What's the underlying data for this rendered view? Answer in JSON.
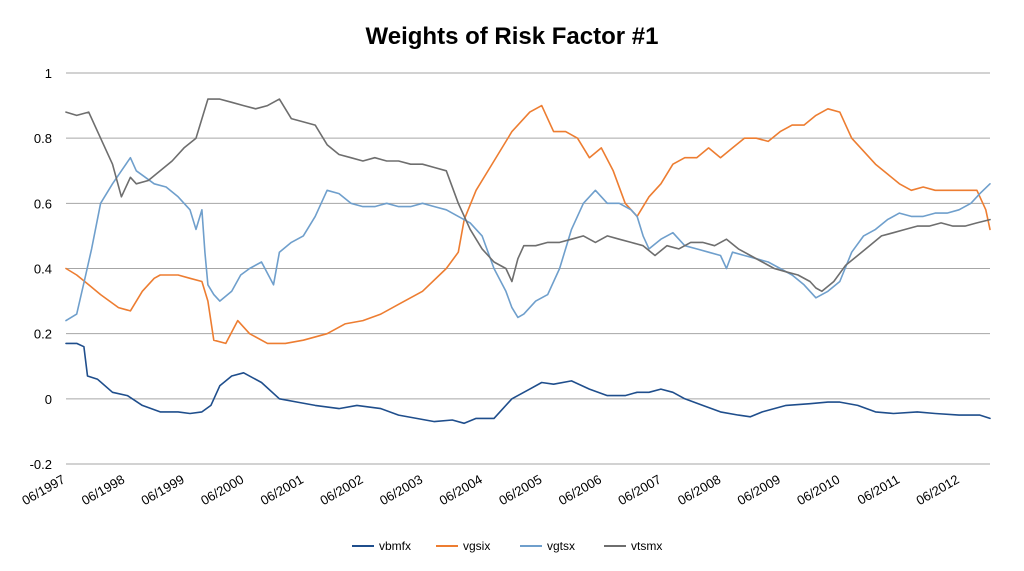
{
  "chart_data": {
    "type": "line",
    "title": "Weights of Risk Factor #1",
    "xlabel": "",
    "ylabel": "",
    "ylim": [
      -0.2,
      1
    ],
    "y_ticks": [
      "-0.2",
      "0",
      "0.2",
      "0.4",
      "0.6",
      "0.8",
      "1"
    ],
    "y_tick_values": [
      -0.2,
      0,
      0.2,
      0.4,
      0.6,
      0.8,
      1
    ],
    "xlim": [
      1997.42,
      2012.92
    ],
    "x_tick_labels": [
      "06/1997",
      "06/1998",
      "06/1999",
      "06/2000",
      "06/2001",
      "06/2002",
      "06/2003",
      "06/2004",
      "06/2005",
      "06/2006",
      "06/2007",
      "06/2008",
      "06/2009",
      "06/2010",
      "06/2011",
      "06/2012"
    ],
    "x_tick_values": [
      1997.42,
      1998.42,
      1999.42,
      2000.42,
      2001.42,
      2002.42,
      2003.42,
      2004.42,
      2005.42,
      2006.42,
      2007.42,
      2008.42,
      2009.42,
      2010.42,
      2011.42,
      2012.42
    ],
    "grid": true,
    "legend_position": "bottom",
    "series": [
      {
        "name": "vbmfx",
        "color": "#1f4e8c",
        "x": [
          1997.42,
          1997.6,
          1997.72,
          1997.78,
          1997.95,
          1998.2,
          1998.45,
          1998.7,
          1999.0,
          1999.3,
          1999.5,
          1999.7,
          1999.85,
          2000.0,
          2000.2,
          2000.4,
          2000.7,
          2001.0,
          2001.3,
          2001.6,
          2002.0,
          2002.3,
          2002.7,
          2003.0,
          2003.3,
          2003.6,
          2003.9,
          2004.1,
          2004.3,
          2004.6,
          2004.9,
          2005.2,
          2005.4,
          2005.6,
          2005.9,
          2006.2,
          2006.5,
          2006.8,
          2007.0,
          2007.2,
          2007.4,
          2007.6,
          2007.8,
          2008.1,
          2008.4,
          2008.7,
          2008.9,
          2009.1,
          2009.5,
          2009.9,
          2010.2,
          2010.4,
          2010.7,
          2011.0,
          2011.3,
          2011.7,
          2012.0,
          2012.4,
          2012.75,
          2012.92
        ],
        "values": [
          0.17,
          0.17,
          0.16,
          0.07,
          0.06,
          0.02,
          0.01,
          -0.02,
          -0.04,
          -0.04,
          -0.045,
          -0.04,
          -0.02,
          0.04,
          0.07,
          0.08,
          0.05,
          0.0,
          -0.01,
          -0.02,
          -0.03,
          -0.02,
          -0.03,
          -0.05,
          -0.06,
          -0.07,
          -0.065,
          -0.075,
          -0.06,
          -0.06,
          0.0,
          0.03,
          0.05,
          0.045,
          0.055,
          0.03,
          0.01,
          0.01,
          0.02,
          0.02,
          0.03,
          0.02,
          0.0,
          -0.02,
          -0.04,
          -0.05,
          -0.055,
          -0.04,
          -0.02,
          -0.015,
          -0.01,
          -0.01,
          -0.02,
          -0.04,
          -0.045,
          -0.04,
          -0.045,
          -0.05,
          -0.05,
          -0.06
        ]
      },
      {
        "name": "vgsix",
        "color": "#ed7d31",
        "x": [
          1997.42,
          1997.6,
          1997.8,
          1998.0,
          1998.3,
          1998.5,
          1998.7,
          1998.9,
          1999.0,
          1999.3,
          1999.5,
          1999.7,
          1999.8,
          1999.9,
          2000.1,
          2000.3,
          2000.5,
          2000.8,
          2001.1,
          2001.4,
          2001.8,
          2002.1,
          2002.4,
          2002.7,
          2003.0,
          2003.4,
          2003.8,
          2004.0,
          2004.1,
          2004.3,
          2004.6,
          2004.9,
          2005.2,
          2005.4,
          2005.6,
          2005.8,
          2006.0,
          2006.2,
          2006.4,
          2006.6,
          2006.8,
          2007.0,
          2007.2,
          2007.4,
          2007.6,
          2007.8,
          2008.0,
          2008.2,
          2008.4,
          2008.6,
          2008.8,
          2009.0,
          2009.2,
          2009.4,
          2009.6,
          2009.8,
          2010.0,
          2010.2,
          2010.4,
          2010.6,
          2010.8,
          2011.0,
          2011.2,
          2011.4,
          2011.6,
          2011.8,
          2012.0,
          2012.4,
          2012.7,
          2012.85,
          2012.92
        ],
        "values": [
          0.4,
          0.38,
          0.35,
          0.32,
          0.28,
          0.27,
          0.33,
          0.37,
          0.38,
          0.38,
          0.37,
          0.36,
          0.3,
          0.18,
          0.17,
          0.24,
          0.2,
          0.17,
          0.17,
          0.18,
          0.2,
          0.23,
          0.24,
          0.26,
          0.29,
          0.33,
          0.4,
          0.45,
          0.55,
          0.64,
          0.73,
          0.82,
          0.88,
          0.9,
          0.82,
          0.82,
          0.8,
          0.74,
          0.77,
          0.7,
          0.6,
          0.56,
          0.62,
          0.66,
          0.72,
          0.74,
          0.74,
          0.77,
          0.74,
          0.77,
          0.8,
          0.8,
          0.79,
          0.82,
          0.84,
          0.84,
          0.87,
          0.89,
          0.88,
          0.8,
          0.76,
          0.72,
          0.69,
          0.66,
          0.64,
          0.65,
          0.64,
          0.64,
          0.64,
          0.58,
          0.52
        ]
      },
      {
        "name": "vgtsx",
        "color": "#6f9fcc",
        "x": [
          1997.42,
          1997.6,
          1997.75,
          1997.85,
          1998.0,
          1998.2,
          1998.35,
          1998.5,
          1998.6,
          1998.75,
          1998.9,
          1999.1,
          1999.3,
          1999.5,
          1999.6,
          1999.7,
          1999.75,
          1999.8,
          1999.9,
          2000.0,
          2000.2,
          2000.35,
          2000.5,
          2000.7,
          2000.9,
          2001.0,
          2001.2,
          2001.4,
          2001.6,
          2001.8,
          2002.0,
          2002.2,
          2002.4,
          2002.6,
          2002.8,
          2003.0,
          2003.2,
          2003.4,
          2003.6,
          2003.8,
          2004.0,
          2004.2,
          2004.4,
          2004.6,
          2004.8,
          2004.9,
          2005.0,
          2005.1,
          2005.3,
          2005.5,
          2005.7,
          2005.9,
          2006.1,
          2006.3,
          2006.5,
          2006.7,
          2006.9,
          2007.0,
          2007.1,
          2007.2,
          2007.4,
          2007.6,
          2007.8,
          2008.0,
          2008.2,
          2008.4,
          2008.5,
          2008.6,
          2008.8,
          2009.0,
          2009.2,
          2009.4,
          2009.6,
          2009.8,
          2010.0,
          2010.2,
          2010.4,
          2010.6,
          2010.8,
          2011.0,
          2011.2,
          2011.4,
          2011.6,
          2011.8,
          2012.0,
          2012.2,
          2012.4,
          2012.6,
          2012.75,
          2012.92
        ],
        "values": [
          0.24,
          0.26,
          0.38,
          0.46,
          0.6,
          0.66,
          0.7,
          0.74,
          0.7,
          0.68,
          0.66,
          0.65,
          0.62,
          0.58,
          0.52,
          0.58,
          0.45,
          0.35,
          0.32,
          0.3,
          0.33,
          0.38,
          0.4,
          0.42,
          0.35,
          0.45,
          0.48,
          0.5,
          0.56,
          0.64,
          0.63,
          0.6,
          0.59,
          0.59,
          0.6,
          0.59,
          0.59,
          0.6,
          0.59,
          0.58,
          0.56,
          0.54,
          0.5,
          0.4,
          0.33,
          0.28,
          0.25,
          0.26,
          0.3,
          0.32,
          0.4,
          0.52,
          0.6,
          0.64,
          0.6,
          0.6,
          0.58,
          0.56,
          0.5,
          0.46,
          0.49,
          0.51,
          0.47,
          0.46,
          0.45,
          0.44,
          0.4,
          0.45,
          0.44,
          0.43,
          0.42,
          0.4,
          0.38,
          0.35,
          0.31,
          0.33,
          0.36,
          0.45,
          0.5,
          0.52,
          0.55,
          0.57,
          0.56,
          0.56,
          0.57,
          0.57,
          0.58,
          0.6,
          0.63,
          0.66
        ]
      },
      {
        "name": "vtsmx",
        "color": "#6e6e6e",
        "x": [
          1997.42,
          1997.6,
          1997.8,
          1998.0,
          1998.2,
          1998.35,
          1998.5,
          1998.6,
          1998.8,
          1999.0,
          1999.2,
          1999.4,
          1999.6,
          1999.8,
          2000.0,
          2000.2,
          2000.4,
          2000.6,
          2000.8,
          2001.0,
          2001.2,
          2001.4,
          2001.6,
          2001.8,
          2002.0,
          2002.2,
          2002.4,
          2002.6,
          2002.8,
          2003.0,
          2003.2,
          2003.4,
          2003.6,
          2003.8,
          2004.0,
          2004.2,
          2004.4,
          2004.6,
          2004.8,
          2004.9,
          2005.0,
          2005.1,
          2005.3,
          2005.5,
          2005.7,
          2005.9,
          2006.1,
          2006.3,
          2006.5,
          2006.7,
          2006.9,
          2007.1,
          2007.3,
          2007.5,
          2007.7,
          2007.9,
          2008.1,
          2008.3,
          2008.5,
          2008.7,
          2008.9,
          2009.1,
          2009.3,
          2009.5,
          2009.7,
          2009.9,
          2010.0,
          2010.1,
          2010.3,
          2010.5,
          2010.7,
          2010.9,
          2011.1,
          2011.3,
          2011.5,
          2011.7,
          2011.9,
          2012.1,
          2012.3,
          2012.5,
          2012.7,
          2012.92
        ],
        "values": [
          0.88,
          0.87,
          0.88,
          0.8,
          0.72,
          0.62,
          0.68,
          0.66,
          0.67,
          0.7,
          0.73,
          0.77,
          0.8,
          0.92,
          0.92,
          0.91,
          0.9,
          0.89,
          0.9,
          0.92,
          0.86,
          0.85,
          0.84,
          0.78,
          0.75,
          0.74,
          0.73,
          0.74,
          0.73,
          0.73,
          0.72,
          0.72,
          0.71,
          0.7,
          0.6,
          0.52,
          0.46,
          0.42,
          0.4,
          0.36,
          0.43,
          0.47,
          0.47,
          0.48,
          0.48,
          0.49,
          0.5,
          0.48,
          0.5,
          0.49,
          0.48,
          0.47,
          0.44,
          0.47,
          0.46,
          0.48,
          0.48,
          0.47,
          0.49,
          0.46,
          0.44,
          0.42,
          0.4,
          0.39,
          0.38,
          0.36,
          0.34,
          0.33,
          0.36,
          0.41,
          0.44,
          0.47,
          0.5,
          0.51,
          0.52,
          0.53,
          0.53,
          0.54,
          0.53,
          0.53,
          0.54,
          0.55
        ]
      }
    ]
  }
}
